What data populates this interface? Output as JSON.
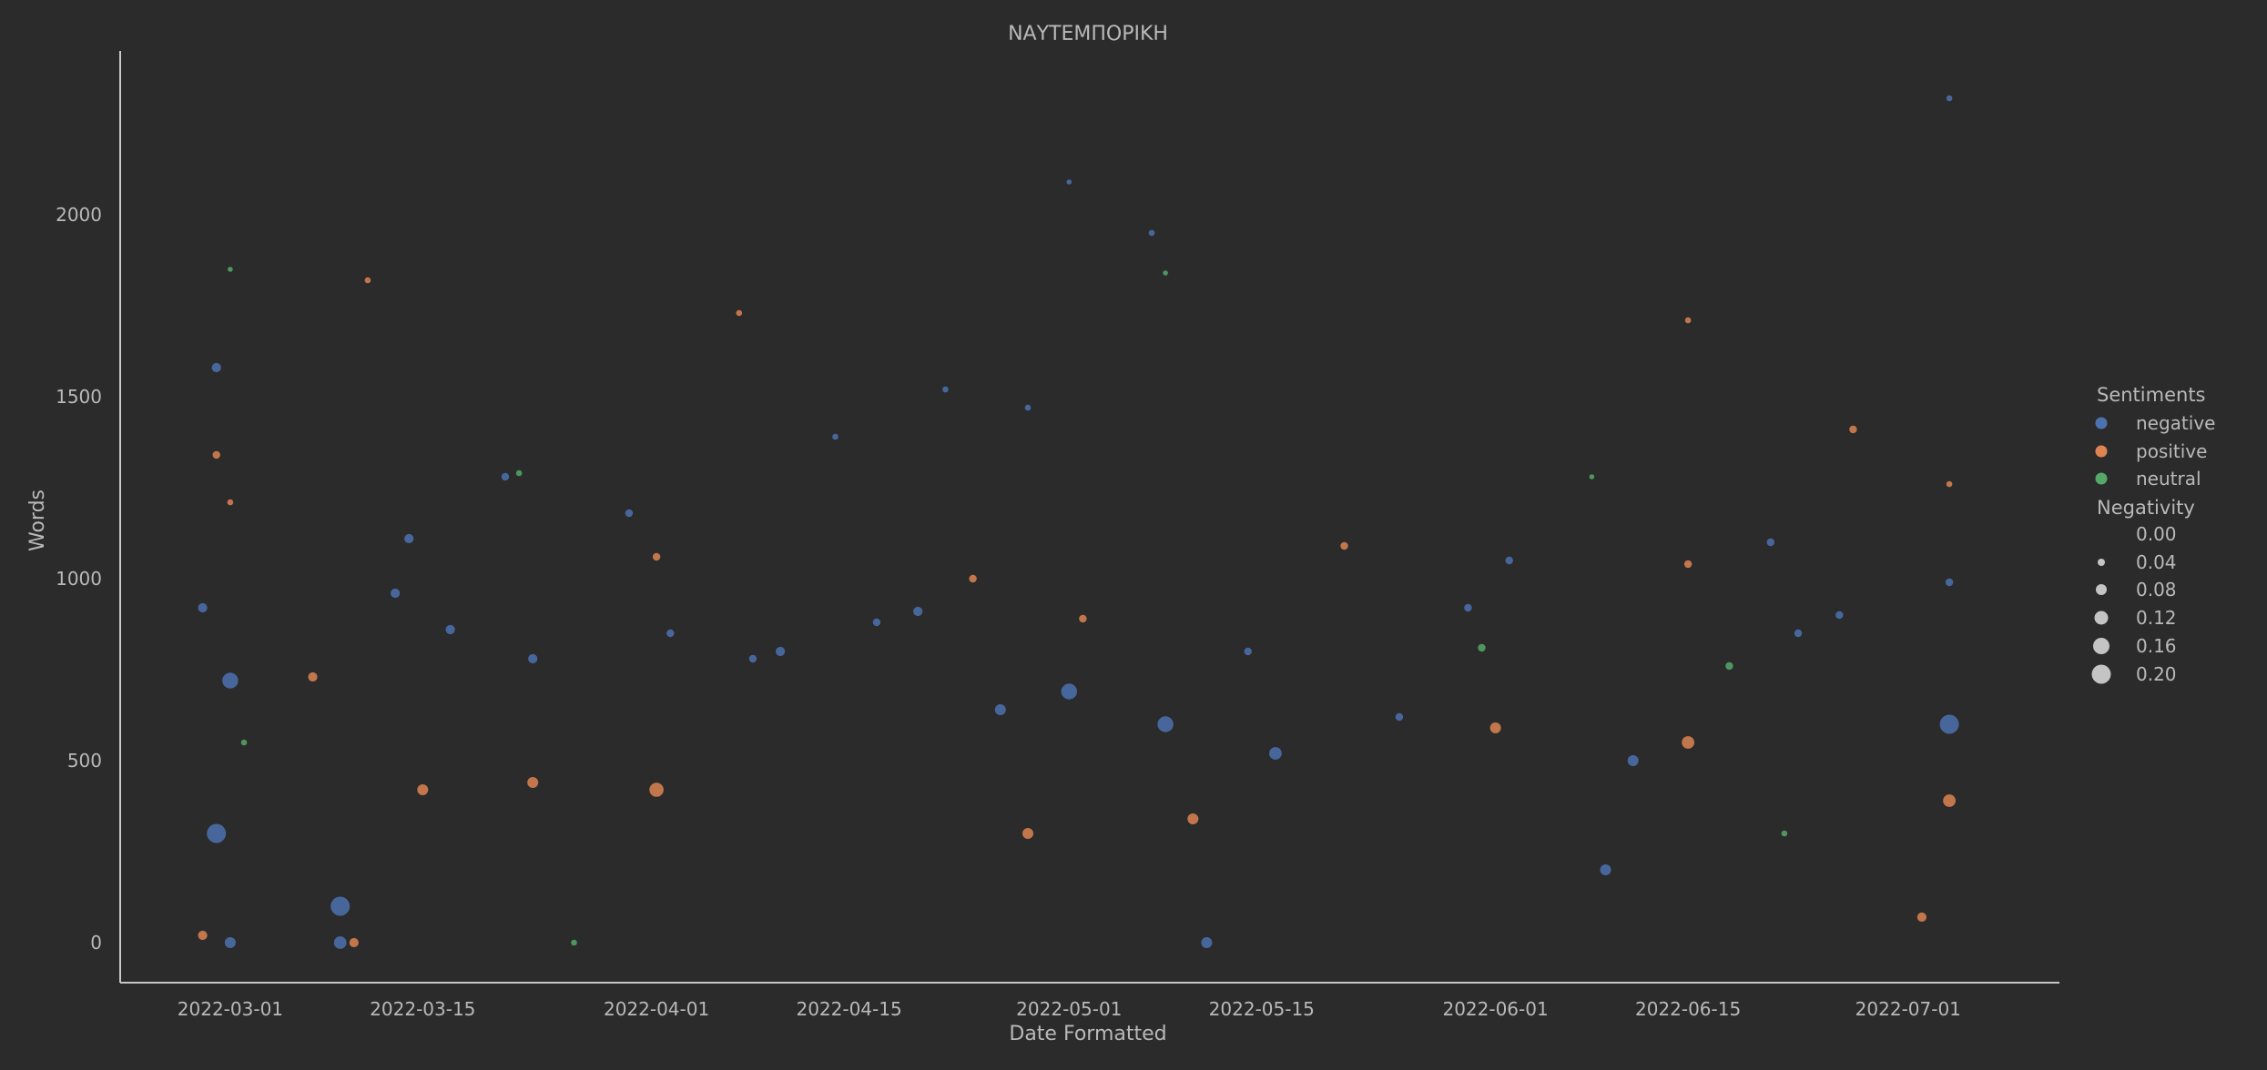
{
  "colors": {
    "background": "#2b2b2b",
    "axis": "#c8c8c8",
    "text": "#b9b9b9",
    "negative": "#4c72b0",
    "positive": "#dd8452",
    "neutral": "#55a868",
    "size_legend": "#c4c4c4"
  },
  "chart_data": {
    "type": "scatter",
    "title": "ΝΑΥΤΕΜΠΟΡΙΚΗ",
    "xlabel": "Date Formatted",
    "ylabel": "Words",
    "x_type": "date",
    "xlim": [
      "2022-02-21",
      "2022-07-12"
    ],
    "ylim": [
      -110,
      2450
    ],
    "x_ticks": [
      "2022-03-01",
      "2022-03-15",
      "2022-04-01",
      "2022-04-15",
      "2022-05-01",
      "2022-05-15",
      "2022-06-01",
      "2022-06-15",
      "2022-07-01"
    ],
    "y_ticks": [
      0,
      500,
      1000,
      1500,
      2000
    ],
    "grid": false,
    "hue": "Sentiments",
    "size": "Negativity",
    "legend": {
      "placement": "right",
      "hue_title": "Sentiments",
      "hue_entries": [
        "negative",
        "positive",
        "neutral"
      ],
      "size_title": "Negativity",
      "size_entries": [
        "0.00",
        "0.04",
        "0.08",
        "0.12",
        "0.16",
        "0.20"
      ]
    },
    "series": [
      {
        "name": "negative",
        "points": [
          {
            "x": "2022-02-27",
            "y": 920,
            "negativity": 0.08
          },
          {
            "x": "2022-02-28",
            "y": 1580,
            "negativity": 0.08
          },
          {
            "x": "2022-03-01",
            "y": 720,
            "negativity": 0.16
          },
          {
            "x": "2022-03-01",
            "y": 0,
            "negativity": 0.1
          },
          {
            "x": "2022-02-28",
            "y": 300,
            "negativity": 0.2
          },
          {
            "x": "2022-03-09",
            "y": 0,
            "negativity": 0.12
          },
          {
            "x": "2022-03-09",
            "y": 100,
            "negativity": 0.2
          },
          {
            "x": "2022-03-13",
            "y": 960,
            "negativity": 0.08
          },
          {
            "x": "2022-03-14",
            "y": 1110,
            "negativity": 0.08
          },
          {
            "x": "2022-03-17",
            "y": 860,
            "negativity": 0.08
          },
          {
            "x": "2022-03-21",
            "y": 1280,
            "negativity": 0.06
          },
          {
            "x": "2022-03-23",
            "y": 780,
            "negativity": 0.08
          },
          {
            "x": "2022-03-30",
            "y": 1180,
            "negativity": 0.06
          },
          {
            "x": "2022-04-02",
            "y": 850,
            "negativity": 0.06
          },
          {
            "x": "2022-04-08",
            "y": 780,
            "negativity": 0.06
          },
          {
            "x": "2022-04-10",
            "y": 800,
            "negativity": 0.08
          },
          {
            "x": "2022-04-14",
            "y": 1390,
            "negativity": 0.04
          },
          {
            "x": "2022-04-17",
            "y": 880,
            "negativity": 0.06
          },
          {
            "x": "2022-04-20",
            "y": 910,
            "negativity": 0.08
          },
          {
            "x": "2022-04-22",
            "y": 1520,
            "negativity": 0.04
          },
          {
            "x": "2022-04-26",
            "y": 640,
            "negativity": 0.1
          },
          {
            "x": "2022-04-28",
            "y": 1470,
            "negativity": 0.04
          },
          {
            "x": "2022-05-01",
            "y": 690,
            "negativity": 0.16
          },
          {
            "x": "2022-05-01",
            "y": 2090,
            "negativity": 0.03
          },
          {
            "x": "2022-05-07",
            "y": 1950,
            "negativity": 0.04
          },
          {
            "x": "2022-05-08",
            "y": 600,
            "negativity": 0.16
          },
          {
            "x": "2022-05-11",
            "y": 0,
            "negativity": 0.1
          },
          {
            "x": "2022-05-14",
            "y": 800,
            "negativity": 0.06
          },
          {
            "x": "2022-05-16",
            "y": 520,
            "negativity": 0.12
          },
          {
            "x": "2022-05-25",
            "y": 620,
            "negativity": 0.06
          },
          {
            "x": "2022-05-30",
            "y": 920,
            "negativity": 0.06
          },
          {
            "x": "2022-06-02",
            "y": 1050,
            "negativity": 0.06
          },
          {
            "x": "2022-06-09",
            "y": 200,
            "negativity": 0.1
          },
          {
            "x": "2022-06-11",
            "y": 500,
            "negativity": 0.1
          },
          {
            "x": "2022-06-21",
            "y": 1100,
            "negativity": 0.06
          },
          {
            "x": "2022-06-23",
            "y": 850,
            "negativity": 0.06
          },
          {
            "x": "2022-06-26",
            "y": 900,
            "negativity": 0.06
          },
          {
            "x": "2022-07-04",
            "y": 2320,
            "negativity": 0.04
          },
          {
            "x": "2022-07-04",
            "y": 600,
            "negativity": 0.2
          },
          {
            "x": "2022-07-04",
            "y": 990,
            "negativity": 0.06
          }
        ]
      },
      {
        "name": "positive",
        "points": [
          {
            "x": "2022-02-27",
            "y": 20,
            "negativity": 0.08
          },
          {
            "x": "2022-02-28",
            "y": 1340,
            "negativity": 0.06
          },
          {
            "x": "2022-03-01",
            "y": 1210,
            "negativity": 0.04
          },
          {
            "x": "2022-03-07",
            "y": 730,
            "negativity": 0.08
          },
          {
            "x": "2022-03-10",
            "y": 0,
            "negativity": 0.08
          },
          {
            "x": "2022-03-11",
            "y": 1820,
            "negativity": 0.04
          },
          {
            "x": "2022-03-15",
            "y": 420,
            "negativity": 0.1
          },
          {
            "x": "2022-03-23",
            "y": 440,
            "negativity": 0.1
          },
          {
            "x": "2022-04-01",
            "y": 1060,
            "negativity": 0.06
          },
          {
            "x": "2022-04-01",
            "y": 420,
            "negativity": 0.14
          },
          {
            "x": "2022-04-07",
            "y": 1730,
            "negativity": 0.04
          },
          {
            "x": "2022-04-24",
            "y": 1000,
            "negativity": 0.06
          },
          {
            "x": "2022-04-28",
            "y": 300,
            "negativity": 0.1
          },
          {
            "x": "2022-05-02",
            "y": 890,
            "negativity": 0.06
          },
          {
            "x": "2022-05-10",
            "y": 340,
            "negativity": 0.1
          },
          {
            "x": "2022-05-21",
            "y": 1090,
            "negativity": 0.06
          },
          {
            "x": "2022-06-01",
            "y": 590,
            "negativity": 0.1
          },
          {
            "x": "2022-06-15",
            "y": 1040,
            "negativity": 0.06
          },
          {
            "x": "2022-06-15",
            "y": 550,
            "negativity": 0.12
          },
          {
            "x": "2022-06-15",
            "y": 1710,
            "negativity": 0.04
          },
          {
            "x": "2022-06-27",
            "y": 1410,
            "negativity": 0.06
          },
          {
            "x": "2022-07-02",
            "y": 70,
            "negativity": 0.08
          },
          {
            "x": "2022-07-04",
            "y": 1260,
            "negativity": 0.04
          },
          {
            "x": "2022-07-04",
            "y": 390,
            "negativity": 0.12
          }
        ]
      },
      {
        "name": "neutral",
        "points": [
          {
            "x": "2022-02-29",
            "y": 1850,
            "negativity": 0.03
          },
          {
            "x": "2022-03-02",
            "y": 550,
            "negativity": 0.04
          },
          {
            "x": "2022-03-22",
            "y": 1290,
            "negativity": 0.04
          },
          {
            "x": "2022-03-26",
            "y": 0,
            "negativity": 0.04
          },
          {
            "x": "2022-05-08",
            "y": 1840,
            "negativity": 0.03
          },
          {
            "x": "2022-05-31",
            "y": 810,
            "negativity": 0.06
          },
          {
            "x": "2022-06-08",
            "y": 1280,
            "negativity": 0.03
          },
          {
            "x": "2022-06-18",
            "y": 760,
            "negativity": 0.06
          },
          {
            "x": "2022-06-22",
            "y": 300,
            "negativity": 0.04
          }
        ]
      }
    ]
  }
}
